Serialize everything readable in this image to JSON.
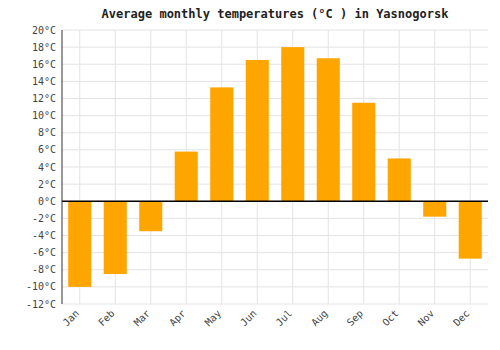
{
  "chart_data": {
    "type": "bar",
    "title": "Average monthly temperatures (°C ) in Yasnogorsk",
    "categories": [
      "Jan",
      "Feb",
      "Mar",
      "Apr",
      "May",
      "Jun",
      "Jul",
      "Aug",
      "Sep",
      "Oct",
      "Nov",
      "Dec"
    ],
    "values": [
      -10,
      -8.5,
      -3.5,
      5.8,
      13.3,
      16.5,
      18.0,
      16.7,
      11.5,
      5.0,
      -1.8,
      -6.7
    ],
    "color": "#FFA500",
    "ylim": [
      -12,
      20
    ],
    "yticks": [
      {
        "value": -12,
        "label": "-12°C"
      },
      {
        "value": -10,
        "label": "-10°C"
      },
      {
        "value": -8,
        "label": "-8°C"
      },
      {
        "value": -6,
        "label": "-6°C"
      },
      {
        "value": -4,
        "label": "-4°C"
      },
      {
        "value": -2,
        "label": "-2°C"
      },
      {
        "value": 0,
        "label": "0°C"
      },
      {
        "value": 2,
        "label": "2°C"
      },
      {
        "value": 4,
        "label": "4°C"
      },
      {
        "value": 6,
        "label": "6°C"
      },
      {
        "value": 8,
        "label": "8°C"
      },
      {
        "value": 10,
        "label": "10°C"
      },
      {
        "value": 12,
        "label": "12°C"
      },
      {
        "value": 14,
        "label": "14°C"
      },
      {
        "value": 16,
        "label": "16°C"
      },
      {
        "value": 18,
        "label": "18°C"
      },
      {
        "value": 20,
        "label": "20°C"
      }
    ],
    "grid": true
  }
}
